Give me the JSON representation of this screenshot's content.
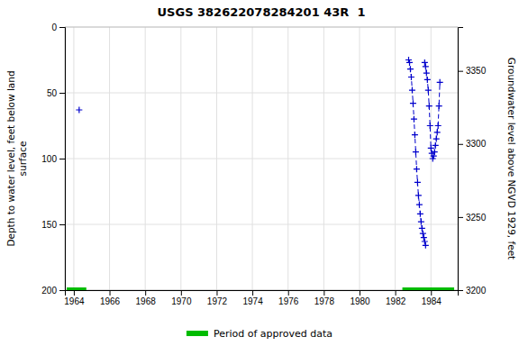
{
  "chart_data": {
    "type": "line",
    "title": "USGS 382622078284201 43R  1",
    "y_label": "Depth to water level, feet below land\n surface",
    "y2_label": "Groundwater level above NGVD 1929, feet",
    "xlim": [
      1963.5,
      1985.5
    ],
    "ylim": [
      200,
      0
    ],
    "y2lim": [
      3200,
      3380
    ],
    "xticks": [
      1964,
      1966,
      1968,
      1970,
      1972,
      1974,
      1976,
      1978,
      1980,
      1982,
      1984
    ],
    "yticks": [
      0,
      50,
      100,
      150,
      200
    ],
    "y2ticks": [
      3200,
      3250,
      3300,
      3350
    ],
    "grid": true,
    "legend": "bottom",
    "series": [
      {
        "type": "line",
        "color": "#0000cc",
        "marker": "plus",
        "line_style": "none",
        "x": [
          1964.3
        ],
        "values": [
          63
        ]
      },
      {
        "type": "line",
        "color": "#0000cc",
        "marker": "plus",
        "line_style": "dashed",
        "x": [
          1982.75,
          1982.8,
          1982.85,
          1982.9,
          1982.95,
          1983.0,
          1983.05,
          1983.1,
          1983.15,
          1983.2,
          1983.25,
          1983.3,
          1983.35,
          1983.4,
          1983.45,
          1983.5,
          1983.55,
          1983.6,
          1983.65,
          1983.7
        ],
        "values": [
          25,
          27,
          32,
          38,
          48,
          58,
          70,
          82,
          95,
          108,
          118,
          128,
          135,
          142,
          148,
          153,
          157,
          160,
          163,
          166
        ]
      },
      {
        "type": "line",
        "color": "#0000cc",
        "marker": "plus",
        "line_style": "dashed",
        "x": [
          1983.65,
          1983.7,
          1983.75,
          1983.8,
          1983.85,
          1983.9,
          1983.95,
          1984.0,
          1984.05,
          1984.1,
          1984.15,
          1984.2,
          1984.25,
          1984.3,
          1984.35,
          1984.4,
          1984.45,
          1984.5
        ],
        "values": [
          27,
          30,
          35,
          40,
          48,
          60,
          75,
          92,
          96,
          100,
          98,
          95,
          90,
          85,
          80,
          75,
          60,
          42
        ]
      },
      {
        "type": "span",
        "name": "Period of approved data",
        "color": "#00bb00",
        "line_style": "solid",
        "x": [
          1963.6,
          1964.7,
          null,
          1982.4,
          1985.3
        ],
        "values": [
          200,
          200,
          null,
          200,
          200
        ]
      }
    ]
  }
}
